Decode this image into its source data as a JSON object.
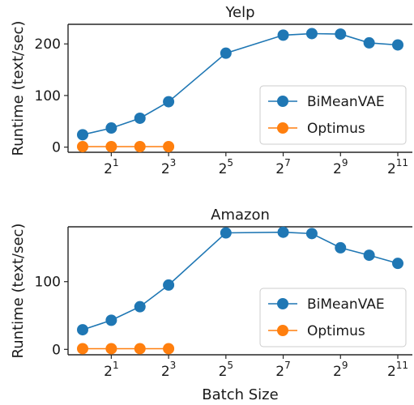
{
  "figure": {
    "xlabel": "Batch Size"
  },
  "colors": {
    "bimeanvae": "#1f77b4",
    "optimus": "#ff7f0e",
    "axes": "#262626"
  },
  "chart_data": [
    {
      "type": "line",
      "title": "Yelp",
      "xlabel": "",
      "ylabel": "Runtime (text/sec)",
      "x_scale": "log2",
      "x": [
        1,
        2,
        4,
        8,
        32,
        128,
        256,
        512,
        1024,
        2048
      ],
      "xticks": [
        2,
        8,
        32,
        128,
        512,
        2048
      ],
      "xtick_labels": [
        {
          "base": "2",
          "exp": "1"
        },
        {
          "base": "2",
          "exp": "3"
        },
        {
          "base": "2",
          "exp": "5"
        },
        {
          "base": "2",
          "exp": "7"
        },
        {
          "base": "2",
          "exp": "9"
        },
        {
          "base": "2",
          "exp": "11"
        }
      ],
      "ylim": [
        -10,
        238
      ],
      "yticks": [
        0,
        100,
        200
      ],
      "series": [
        {
          "name": "BiMeanVAE",
          "color": "#1f77b4",
          "x": [
            1,
            2,
            4,
            8,
            32,
            128,
            256,
            512,
            1024,
            2048
          ],
          "values": [
            24,
            37,
            56,
            88,
            182,
            217,
            220,
            219,
            202,
            198
          ]
        },
        {
          "name": "Optimus",
          "color": "#ff7f0e",
          "x": [
            1,
            2,
            4,
            8
          ],
          "values": [
            1,
            1,
            1,
            1
          ]
        }
      ],
      "legend": "lower-right",
      "grid": false
    },
    {
      "type": "line",
      "title": "Amazon",
      "xlabel": "Batch Size",
      "ylabel": "Runtime (text/sec)",
      "x_scale": "log2",
      "x": [
        1,
        2,
        4,
        8,
        32,
        128,
        256,
        512,
        1024,
        2048
      ],
      "xticks": [
        2,
        8,
        32,
        128,
        512,
        2048
      ],
      "xtick_labels": [
        {
          "base": "2",
          "exp": "1"
        },
        {
          "base": "2",
          "exp": "3"
        },
        {
          "base": "2",
          "exp": "5"
        },
        {
          "base": "2",
          "exp": "7"
        },
        {
          "base": "2",
          "exp": "9"
        },
        {
          "base": "2",
          "exp": "11"
        }
      ],
      "ylim": [
        -8,
        181
      ],
      "yticks": [
        0,
        100
      ],
      "series": [
        {
          "name": "BiMeanVAE",
          "color": "#1f77b4",
          "x": [
            1,
            2,
            4,
            8,
            32,
            128,
            256,
            512,
            1024,
            2048
          ],
          "values": [
            29,
            43,
            63,
            95,
            172,
            173,
            171,
            150,
            139,
            127
          ]
        },
        {
          "name": "Optimus",
          "color": "#ff7f0e",
          "x": [
            1,
            2,
            4,
            8
          ],
          "values": [
            1,
            1,
            1,
            1
          ]
        }
      ],
      "legend": "lower-right",
      "grid": false
    }
  ]
}
